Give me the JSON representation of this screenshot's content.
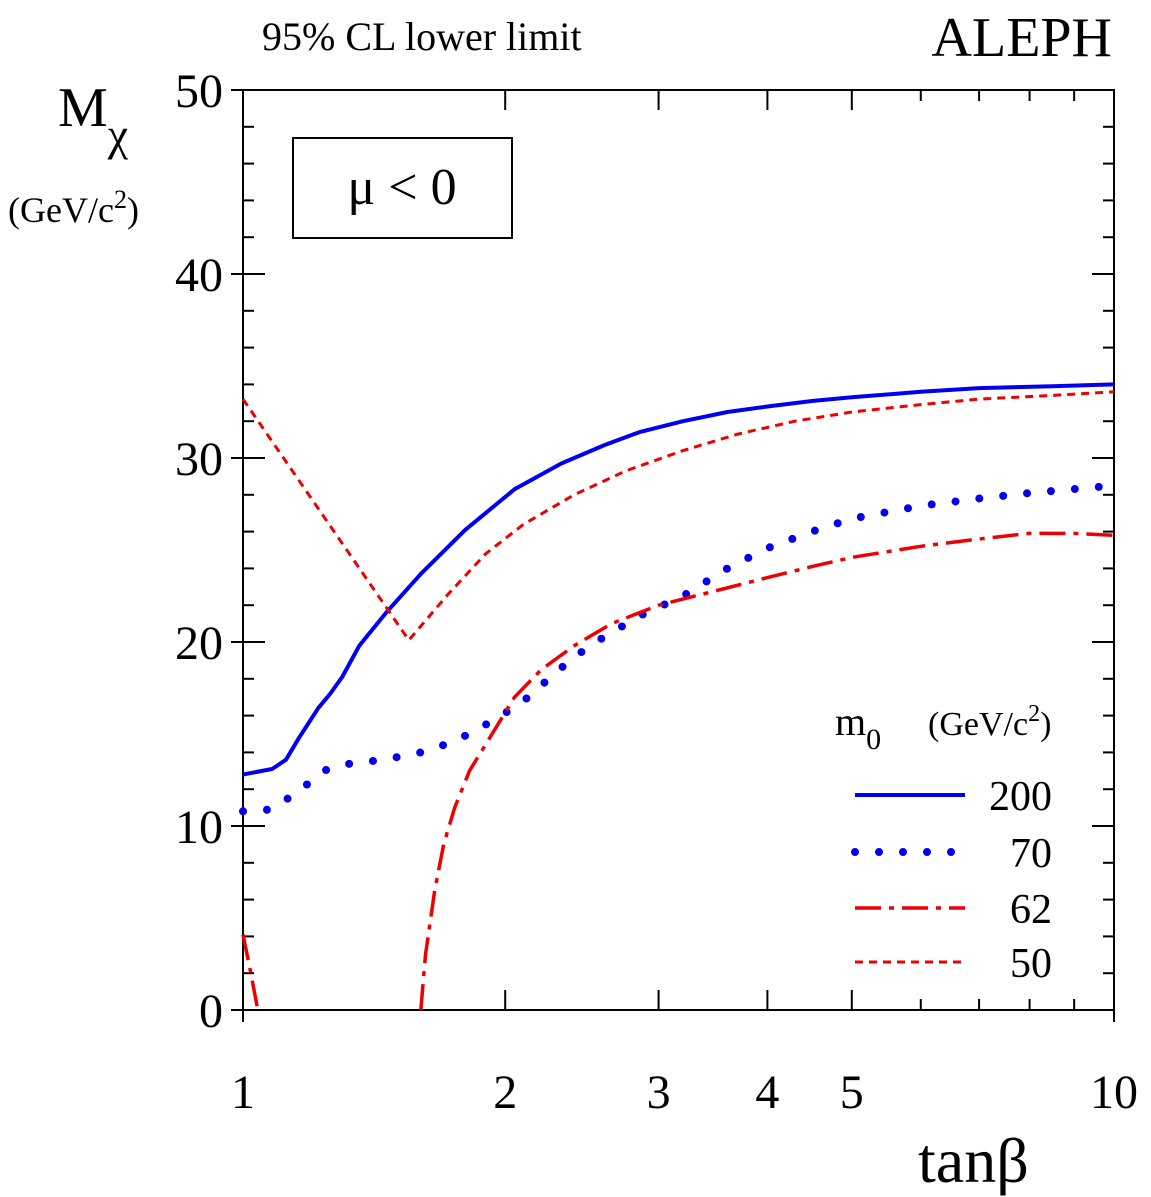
{
  "chart_data": {
    "type": "line",
    "title": "95% CL lower limit",
    "experiment": "ALEPH",
    "annotation": "μ < 0",
    "xlabel": "tanβ",
    "ylabel": {
      "main": "M",
      "sub": "χ",
      "unit": "(GeV/c",
      "unit_sup": "2",
      "unit_close": ")"
    },
    "xscale": "log",
    "xlim": [
      1,
      10
    ],
    "ylim": [
      0,
      50
    ],
    "x_ticks": [
      {
        "value": 1,
        "label": "1"
      },
      {
        "value": 2,
        "label": "2"
      },
      {
        "value": 3,
        "label": "3"
      },
      {
        "value": 4,
        "label": "4"
      },
      {
        "value": 5,
        "label": "5"
      },
      {
        "value": 10,
        "label": "10"
      }
    ],
    "y_ticks": [
      {
        "value": 0,
        "label": "0"
      },
      {
        "value": 10,
        "label": "10"
      },
      {
        "value": 20,
        "label": "20"
      },
      {
        "value": 30,
        "label": "30"
      },
      {
        "value": 40,
        "label": "40"
      },
      {
        "value": 50,
        "label": "50"
      }
    ],
    "legend": {
      "title": "m",
      "title_sub": "0",
      "unit": "(GeV/c",
      "unit_sup": "2",
      "unit_close": ")",
      "position": "lower-right"
    },
    "series": [
      {
        "name": "200",
        "color": "#0000ee",
        "style": "solid",
        "points": [
          [
            1.0,
            12.8
          ],
          [
            1.08,
            13.1
          ],
          [
            1.12,
            13.6
          ],
          [
            1.16,
            14.8
          ],
          [
            1.22,
            16.4
          ],
          [
            1.26,
            17.2
          ],
          [
            1.3,
            18.1
          ],
          [
            1.36,
            19.8
          ],
          [
            1.46,
            21.6
          ],
          [
            1.6,
            23.7
          ],
          [
            1.8,
            26.1
          ],
          [
            2.05,
            28.3
          ],
          [
            2.32,
            29.7
          ],
          [
            2.6,
            30.7
          ],
          [
            2.85,
            31.4
          ],
          [
            3.2,
            32.0
          ],
          [
            3.6,
            32.5
          ],
          [
            4.0,
            32.8
          ],
          [
            4.5,
            33.1
          ],
          [
            5.0,
            33.3
          ],
          [
            6.0,
            33.6
          ],
          [
            7.0,
            33.8
          ],
          [
            8.5,
            33.9
          ],
          [
            10.0,
            34.0
          ]
        ]
      },
      {
        "name": "70",
        "color": "#0000ee",
        "style": "dotted",
        "points": [
          [
            1.0,
            10.8
          ],
          [
            1.08,
            10.9
          ],
          [
            1.15,
            11.8
          ],
          [
            1.25,
            13.1
          ],
          [
            1.33,
            13.4
          ],
          [
            1.45,
            13.6
          ],
          [
            1.6,
            14.0
          ],
          [
            1.75,
            14.6
          ],
          [
            1.95,
            15.8
          ],
          [
            2.1,
            16.8
          ],
          [
            2.32,
            18.6
          ],
          [
            2.5,
            19.8
          ],
          [
            2.85,
            21.4
          ],
          [
            3.2,
            22.5
          ],
          [
            3.6,
            24.0
          ],
          [
            4.0,
            25.1
          ],
          [
            4.5,
            26.0
          ],
          [
            5.0,
            26.7
          ],
          [
            6.0,
            27.4
          ],
          [
            7.0,
            27.8
          ],
          [
            8.0,
            28.1
          ],
          [
            10.0,
            28.5
          ]
        ]
      },
      {
        "name": "62",
        "color": "#ee0000",
        "style": "dashdot",
        "segments": [
          [
            [
              1.0,
              4.1
            ],
            [
              1.02,
              2.1
            ],
            [
              1.04,
              0.0
            ]
          ],
          [
            [
              1.6,
              0.0
            ],
            [
              1.62,
              3.0
            ],
            [
              1.66,
              6.5
            ],
            [
              1.7,
              9.0
            ],
            [
              1.75,
              11.0
            ],
            [
              1.82,
              13.0
            ],
            [
              1.92,
              14.8
            ],
            [
              2.05,
              17.0
            ],
            [
              2.2,
              18.5
            ],
            [
              2.4,
              19.8
            ],
            [
              2.65,
              21.0
            ],
            [
              3.0,
              22.0
            ],
            [
              3.5,
              22.8
            ],
            [
              4.0,
              23.5
            ],
            [
              4.5,
              24.1
            ],
            [
              5.0,
              24.6
            ],
            [
              6.0,
              25.2
            ],
            [
              7.0,
              25.6
            ],
            [
              8.0,
              25.9
            ],
            [
              9.0,
              25.9
            ],
            [
              10.0,
              25.8
            ]
          ]
        ]
      },
      {
        "name": "50",
        "color": "#ee0000",
        "style": "dashed",
        "points": [
          [
            1.0,
            33.2
          ],
          [
            1.55,
            20.1
          ],
          [
            1.72,
            22.6
          ],
          [
            1.9,
            24.8
          ],
          [
            2.1,
            26.4
          ],
          [
            2.4,
            28.0
          ],
          [
            2.75,
            29.3
          ],
          [
            3.2,
            30.4
          ],
          [
            3.7,
            31.3
          ],
          [
            4.3,
            32.0
          ],
          [
            5.0,
            32.5
          ],
          [
            6.0,
            32.9
          ],
          [
            7.0,
            33.2
          ],
          [
            8.5,
            33.4
          ],
          [
            10.0,
            33.6
          ]
        ]
      }
    ]
  }
}
